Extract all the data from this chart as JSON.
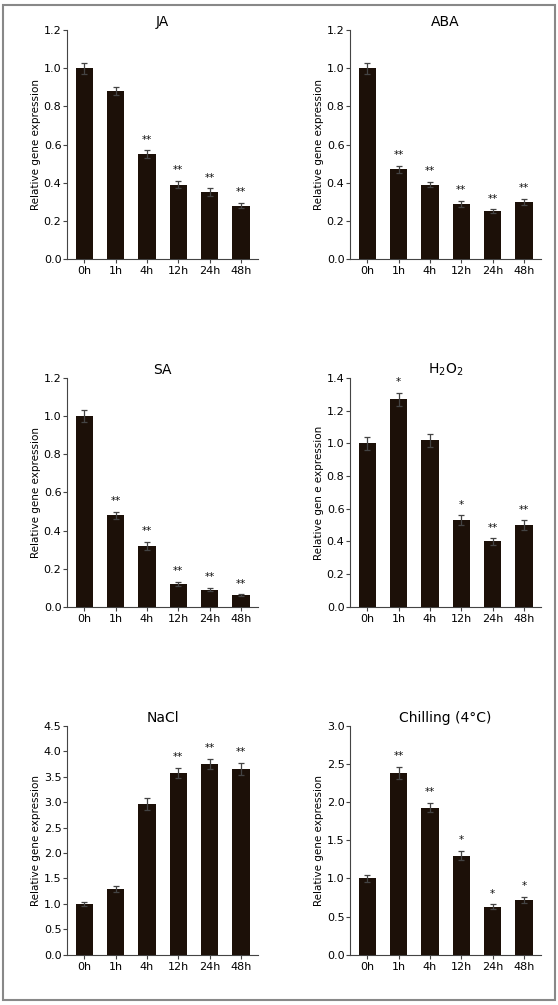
{
  "panels": [
    {
      "title": "JA",
      "ylabel": "Relative gene expression",
      "xticks": [
        "0h",
        "1h",
        "4h",
        "12h",
        "24h",
        "48h"
      ],
      "values": [
        1.0,
        0.88,
        0.55,
        0.39,
        0.35,
        0.28
      ],
      "errors": [
        0.03,
        0.02,
        0.02,
        0.02,
        0.02,
        0.015
      ],
      "significance": [
        "",
        "",
        "**",
        "**",
        "**",
        "**"
      ],
      "ylim": [
        0,
        1.2
      ],
      "yticks": [
        0.0,
        0.2,
        0.4,
        0.6,
        0.8,
        1.0,
        1.2
      ]
    },
    {
      "title": "ABA",
      "ylabel": "Relative gene expression",
      "xticks": [
        "0h",
        "1h",
        "4h",
        "12h",
        "24h",
        "48h"
      ],
      "values": [
        1.0,
        0.47,
        0.39,
        0.29,
        0.25,
        0.3
      ],
      "errors": [
        0.03,
        0.02,
        0.015,
        0.015,
        0.01,
        0.015
      ],
      "significance": [
        "",
        "**",
        "**",
        "**",
        "**",
        "**"
      ],
      "ylim": [
        0,
        1.2
      ],
      "yticks": [
        0.0,
        0.2,
        0.4,
        0.6,
        0.8,
        1.0,
        1.2
      ]
    },
    {
      "title": "SA",
      "ylabel": "Relative gene expression",
      "xticks": [
        "0h",
        "1h",
        "4h",
        "12h",
        "24h",
        "48h"
      ],
      "values": [
        1.0,
        0.48,
        0.32,
        0.12,
        0.09,
        0.06
      ],
      "errors": [
        0.03,
        0.02,
        0.02,
        0.01,
        0.008,
        0.005
      ],
      "significance": [
        "",
        "**",
        "**",
        "**",
        "**",
        "**"
      ],
      "ylim": [
        0,
        1.2
      ],
      "yticks": [
        0.0,
        0.2,
        0.4,
        0.6,
        0.8,
        1.0,
        1.2
      ]
    },
    {
      "title": "H$_2$O$_2$",
      "ylabel": "Relative gen e expression",
      "xticks": [
        "0h",
        "1h",
        "4h",
        "12h",
        "24h",
        "48h"
      ],
      "values": [
        1.0,
        1.27,
        1.02,
        0.53,
        0.4,
        0.5
      ],
      "errors": [
        0.04,
        0.04,
        0.04,
        0.03,
        0.02,
        0.03
      ],
      "significance": [
        "",
        "*",
        "",
        "*",
        "**",
        "**"
      ],
      "ylim": [
        0,
        1.4
      ],
      "yticks": [
        0.0,
        0.2,
        0.4,
        0.6,
        0.8,
        1.0,
        1.2,
        1.4
      ]
    },
    {
      "title": "NaCl",
      "ylabel": "Relative gene expression",
      "xticks": [
        "0h",
        "1h",
        "4h",
        "12h",
        "24h",
        "48h"
      ],
      "values": [
        1.0,
        1.3,
        2.97,
        3.57,
        3.75,
        3.65
      ],
      "errors": [
        0.04,
        0.06,
        0.12,
        0.1,
        0.1,
        0.12
      ],
      "significance": [
        "",
        "",
        "",
        "**",
        "**",
        "**"
      ],
      "ylim": [
        0,
        4.5
      ],
      "yticks": [
        0.0,
        0.5,
        1.0,
        1.5,
        2.0,
        2.5,
        3.0,
        3.5,
        4.0,
        4.5
      ]
    },
    {
      "title": "Chilling (4°C)",
      "ylabel": "Relative gene expression",
      "xticks": [
        "0h",
        "1h",
        "4h",
        "12h",
        "24h",
        "48h"
      ],
      "values": [
        1.0,
        2.38,
        1.93,
        1.3,
        0.63,
        0.72
      ],
      "errors": [
        0.04,
        0.08,
        0.06,
        0.06,
        0.03,
        0.04
      ],
      "significance": [
        "",
        "**",
        "**",
        "*",
        "*",
        "*"
      ],
      "ylim": [
        0,
        3.0
      ],
      "yticks": [
        0.0,
        0.5,
        1.0,
        1.5,
        2.0,
        2.5,
        3.0
      ]
    }
  ],
  "bar_color": "#1c1008",
  "bar_width": 0.55,
  "sig_color": "#111111",
  "sig_fontsize": 7.5,
  "title_fontsize": 10,
  "ylabel_fontsize": 7.5,
  "tick_fontsize": 8,
  "figure_bgcolor": "#ffffff"
}
